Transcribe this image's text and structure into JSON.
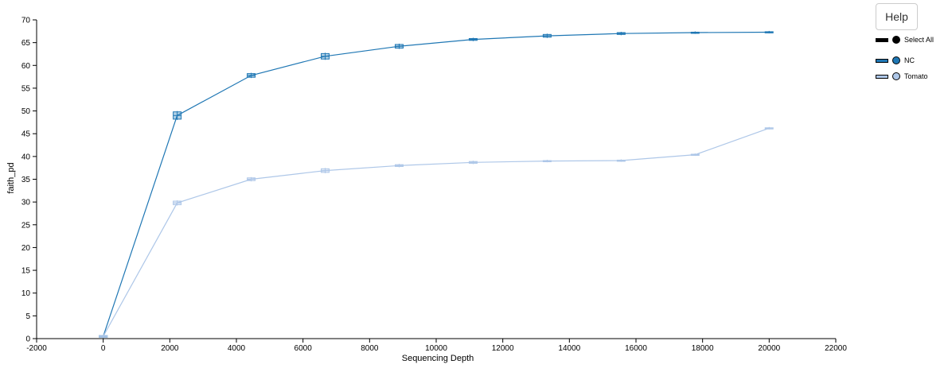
{
  "help_label": "Help",
  "legend": {
    "select_all_label": "Select All",
    "items": [
      {
        "label": "NC",
        "color": "#1f77b4"
      },
      {
        "label": "Tomato",
        "color": "#aec7e8"
      }
    ]
  },
  "chart_data": {
    "type": "line",
    "xlabel": "Sequencing Depth",
    "ylabel": "faith_pd",
    "xlim": [
      -2000,
      22000
    ],
    "ylim": [
      0,
      70
    ],
    "xticks": [
      -2000,
      0,
      2000,
      4000,
      6000,
      8000,
      10000,
      12000,
      14000,
      16000,
      18000,
      20000,
      22000
    ],
    "yticks": [
      0,
      5,
      10,
      15,
      20,
      25,
      30,
      35,
      40,
      45,
      50,
      55,
      60,
      65,
      70
    ],
    "x": [
      1,
      2222,
      4444,
      6666,
      8888,
      11110,
      13332,
      15554,
      17776,
      19998
    ],
    "series": [
      {
        "name": "NC",
        "color": "#1f77b4",
        "values": [
          0.5,
          49.0,
          57.8,
          62.0,
          64.2,
          65.7,
          66.5,
          67.0,
          67.2,
          67.3
        ],
        "spread": [
          0.2,
          0.8,
          0.4,
          0.6,
          0.4,
          0.2,
          0.3,
          0.2,
          0.1,
          0.1
        ]
      },
      {
        "name": "Tomato",
        "color": "#aec7e8",
        "values": [
          0.5,
          29.8,
          35.0,
          36.9,
          38.0,
          38.7,
          39.0,
          39.1,
          40.4,
          46.2
        ],
        "spread": [
          0.2,
          0.4,
          0.3,
          0.4,
          0.2,
          0.2,
          0.1,
          0.1,
          0.1,
          0.1
        ]
      }
    ],
    "grid": false,
    "legend_position": "top-right"
  }
}
